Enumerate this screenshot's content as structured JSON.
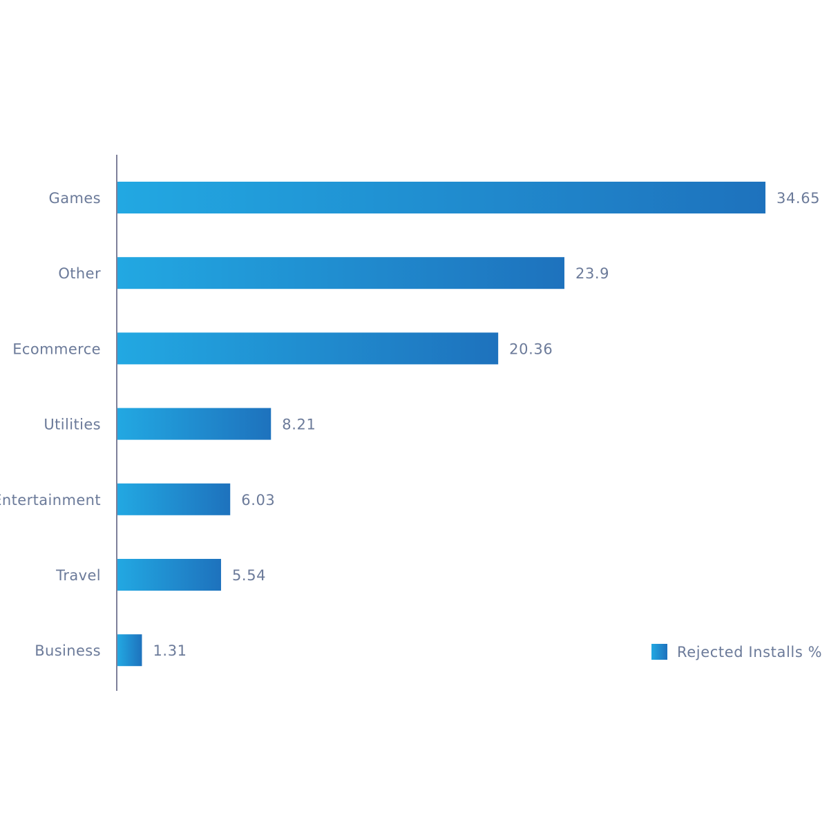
{
  "chart_data": {
    "type": "bar",
    "orientation": "horizontal",
    "categories": [
      "Games",
      "Other",
      "Ecommerce",
      "Utilities",
      "Entertainment",
      "Travel",
      "Business"
    ],
    "series": [
      {
        "name": "Rejected Installs %",
        "values": [
          34.65,
          23.9,
          20.36,
          8.21,
          6.03,
          5.54,
          1.31
        ]
      }
    ],
    "value_labels": [
      "34.65",
      "23.9",
      "20.36",
      "8.21",
      "6.03",
      "5.54",
      "1.31"
    ],
    "title": "",
    "xlabel": "",
    "ylabel": "",
    "xlim": [
      0,
      35
    ],
    "grid": false,
    "legend": {
      "label": "Rejected Installs %",
      "position": "bottom-right"
    },
    "colors": {
      "bar_start": "#22a8e2",
      "bar_end": "#1e72bd",
      "axis": "#7d7f99",
      "text": "#6b7a99"
    }
  }
}
